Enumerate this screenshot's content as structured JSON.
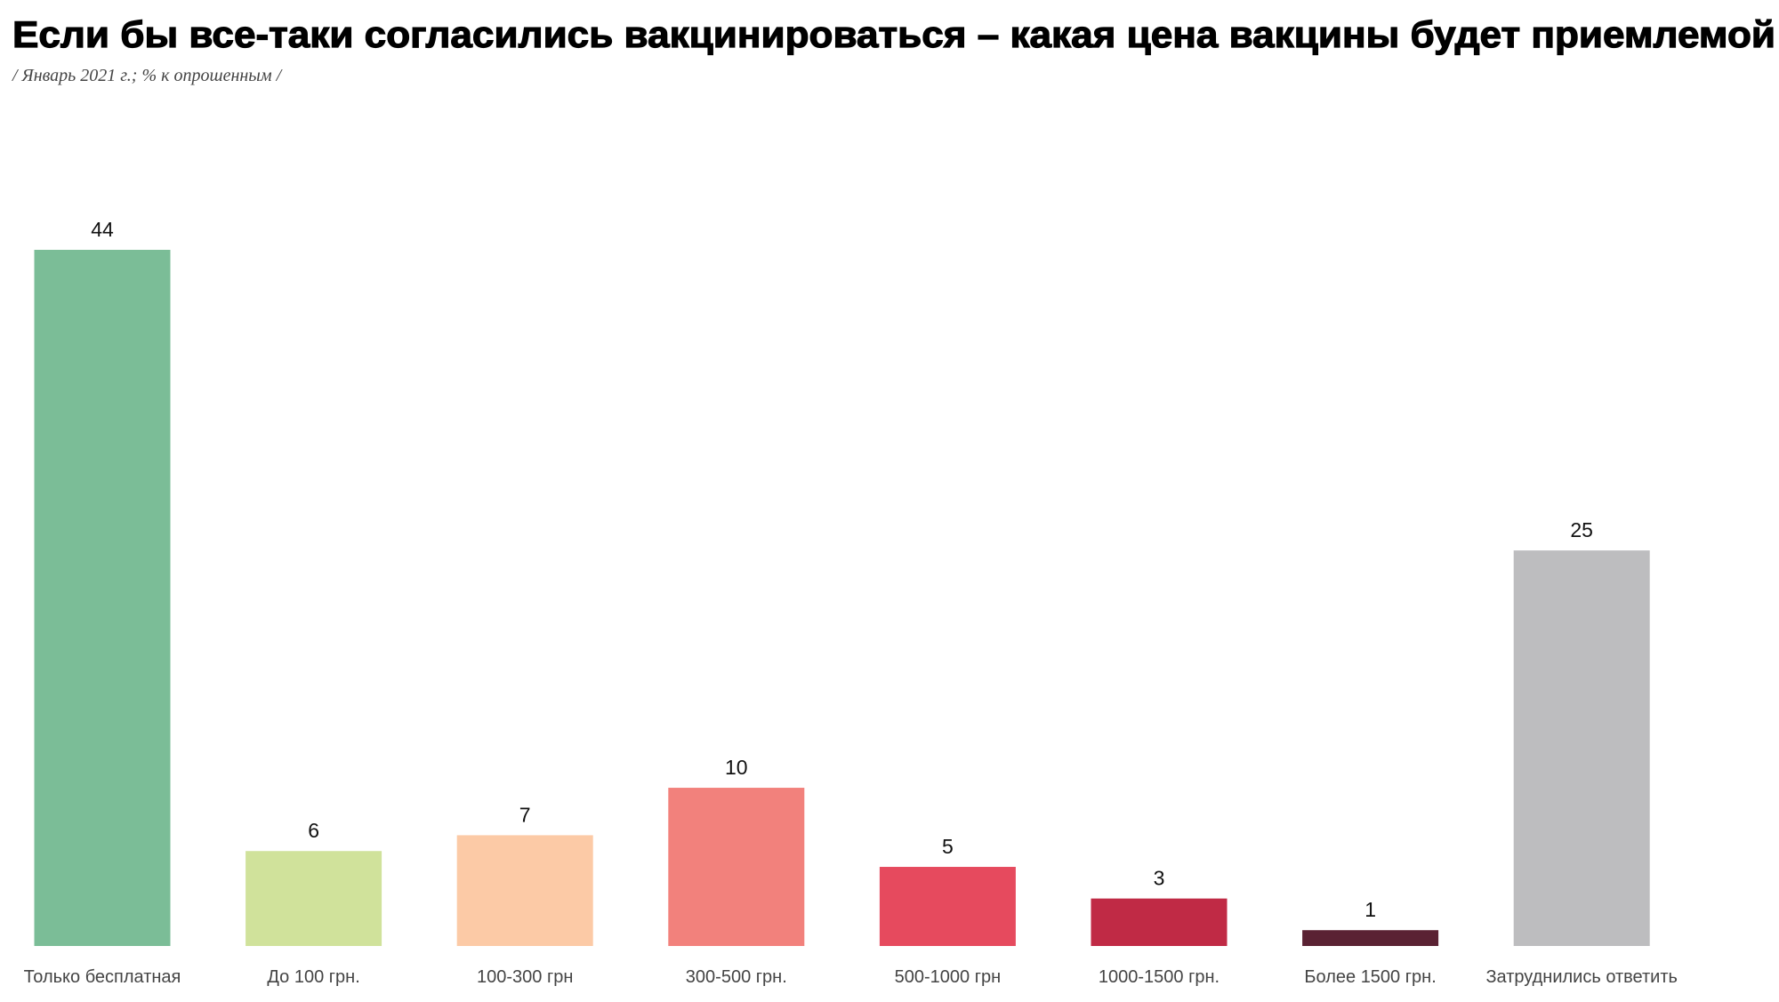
{
  "chart_data": {
    "type": "bar",
    "title": "Если бы все-таки согласились вакцинироваться – какая цена вакцины будет приемлемой",
    "subtitle": "/ Январь 2021 г.; % к опрошенным /",
    "xlabel": "",
    "ylabel": "",
    "ylim": [
      0,
      44
    ],
    "grid": false,
    "categories": [
      "Только бесплатная",
      "До 100 грн.",
      "100-300 грн",
      "300-500 грн.",
      "500-1000 грн",
      "1000-1500 грн.",
      "Более 1500 грн.",
      "Затруднились ответить"
    ],
    "values": [
      44,
      6,
      7,
      10,
      5,
      3,
      1,
      25
    ],
    "colors": [
      "#7bbd97",
      "#d0e29b",
      "#fccaa6",
      "#f2817c",
      "#e64a5e",
      "#c02a45",
      "#5a2233",
      "#bdbdbf"
    ]
  }
}
